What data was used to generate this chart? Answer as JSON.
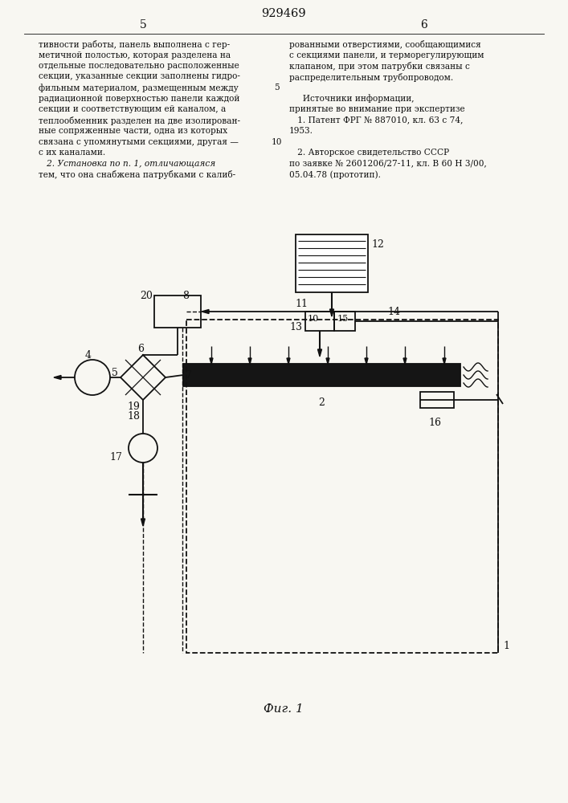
{
  "patent_number": "929469",
  "page_left": "5",
  "page_right": "6",
  "col1_lines": [
    "тивности работы, панель выполнена с гер-",
    "метичной полостью, которая разделена на",
    "отдельные последовательно расположенные",
    "секции, указанные секции заполнены гидро-",
    "фильным материалом, размещенным между",
    "радиационной поверхностью панели каждой",
    "секции и соответствующим ей каналом, а",
    "теплообменник разделен на две изолирован-",
    "ные сопряженные части, одна из которых",
    "связана с упомянутыми секциями, другая —",
    "с их каналами.",
    "   2. Установка по п. 1, отличающаяся",
    "тем, что она снабжена патрубками с калиб-"
  ],
  "col2_lines": [
    "рованными отверстиями, сообщающимися",
    "с секциями панели, и терморегулирующим",
    "клапаном, при этом патрубки связаны с",
    "распределительным трубопроводом.",
    "",
    "     Источники информации,",
    "принятые во внимание при экспертизе",
    "   1. Патент ФРГ № 887010, кл. 63 с 74,",
    "1953.",
    "",
    "   2. Авторское свидетельство СССР",
    "по заявке № 2601206/27-11, кл. В 60 Н 3/00,",
    "05.04.78 (прототип)."
  ],
  "linenum_5_row": 5,
  "linenum_10_row": 10,
  "fig_caption": "Фиг. 1",
  "bg_color": "#f8f7f2",
  "text_color": "#111111"
}
